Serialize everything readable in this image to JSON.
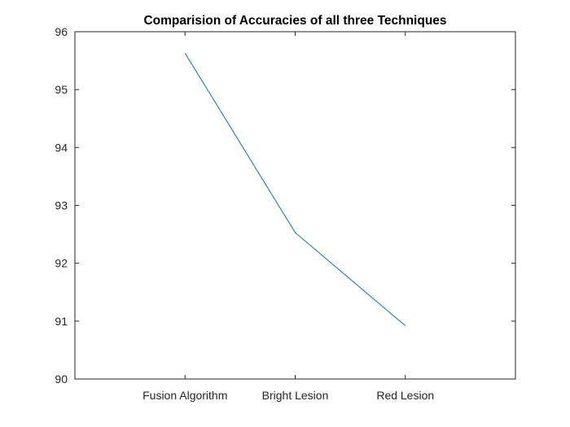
{
  "chart_data": {
    "type": "line",
    "title": "Comparision of Accuracies of all three Techniques",
    "xlabel": "",
    "ylabel": "",
    "categories": [
      "Fusion Algorithm",
      "Bright Lesion",
      "Red Lesion"
    ],
    "series": [
      {
        "values": [
          95.63,
          92.53,
          90.92
        ],
        "color": "#0072bd"
      }
    ],
    "ylim": [
      90,
      96
    ],
    "yticks": [
      "90",
      "91",
      "92",
      "93",
      "94",
      "95",
      "96"
    ],
    "grid": false,
    "legend": "none"
  }
}
